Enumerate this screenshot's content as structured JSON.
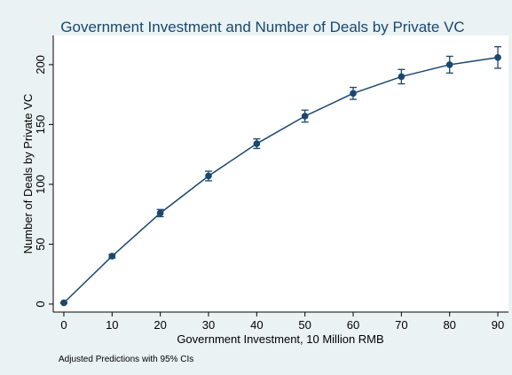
{
  "chart_data": {
    "type": "line",
    "title": "Government Investment and Number of Deals by Private VC",
    "x_label": "Government Investment, 10 Million RMB",
    "y_label": "Number of Deals by Private VC",
    "note": "Adjusted Predictions with 95% CIs",
    "x": [
      0,
      10,
      20,
      30,
      40,
      50,
      60,
      70,
      80,
      90
    ],
    "series": [
      {
        "color": "#1a476f",
        "values": [
          1,
          40,
          76,
          107,
          134,
          157,
          176,
          190,
          200,
          206
        ],
        "errors": [
          0.5,
          1.5,
          3,
          4,
          4,
          5,
          5,
          6,
          7,
          9
        ]
      }
    ],
    "xlim": [
      -2.2,
      92.2
    ],
    "ylim": [
      -6.7,
      224.4
    ],
    "xticks": [
      0,
      10,
      20,
      30,
      40,
      50,
      60,
      70,
      80,
      90
    ],
    "yticks": [
      0,
      50,
      100,
      150,
      200
    ],
    "grid": false
  }
}
